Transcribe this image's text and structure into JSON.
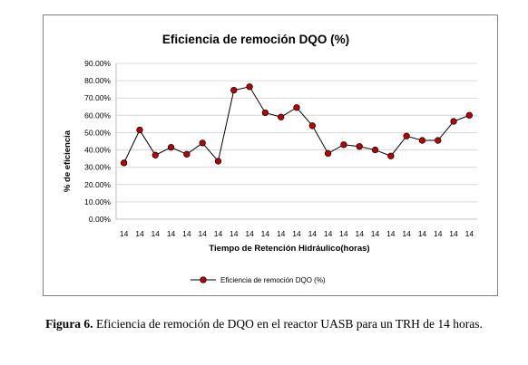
{
  "chart_data": {
    "type": "line",
    "title": "Eficiencia de remoción DQO (%)",
    "xlabel": "Tiempo de Retención Hidráulico(horas)",
    "ylabel": "% de eficiencia",
    "categories": [
      "14",
      "14",
      "14",
      "14",
      "14",
      "14",
      "14",
      "14",
      "14",
      "14",
      "14",
      "14",
      "14",
      "14",
      "14",
      "14",
      "14",
      "14",
      "14",
      "14",
      "14",
      "14",
      "14"
    ],
    "series": [
      {
        "name": "Eficiencia de remoción DQO (%)",
        "values": [
          32.5,
          51.5,
          37.0,
          41.5,
          37.5,
          44.0,
          33.5,
          74.5,
          76.5,
          61.5,
          59.0,
          64.5,
          54.0,
          38.0,
          43.0,
          42.0,
          40.0,
          36.5,
          48.0,
          45.5,
          45.5,
          56.5,
          60.0
        ],
        "color": "#c00000"
      }
    ],
    "ylim": [
      0,
      90
    ],
    "yticks": [
      "0.00%",
      "10.00%",
      "20.00%",
      "30.00%",
      "40.00%",
      "50.00%",
      "60.00%",
      "70.00%",
      "80.00%",
      "90.00%"
    ],
    "grid": true,
    "legend_position": "bottom"
  },
  "caption": {
    "label": "Figura 6.",
    "text": " Eficiencia de remoción de DQO en el reactor UASB para un TRH de 14 horas."
  }
}
